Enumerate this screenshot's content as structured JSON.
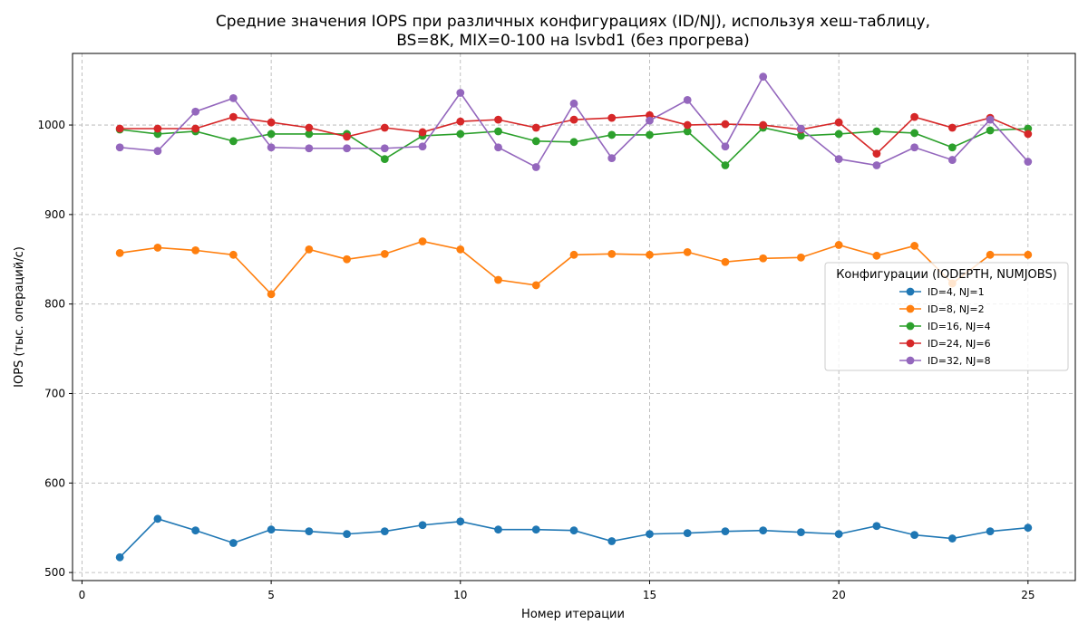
{
  "chart_data": {
    "type": "line",
    "title_line1": "Средние значения IOPS при различных конфигурациях (ID/NJ), используя хеш-таблицу,",
    "title_line2": "BS=8K, MIX=0-100 на lsvbd1 (без прогрева)",
    "xlabel": "Номер итерации",
    "ylabel": "IOPS (тыс. операций/с)",
    "xlim": [
      -0.25,
      26.25
    ],
    "ylim": [
      491,
      1080
    ],
    "x_ticks": [
      0,
      5,
      10,
      15,
      20,
      25
    ],
    "y_ticks": [
      500,
      600,
      700,
      800,
      900,
      1000
    ],
    "grid": true,
    "legend_title": "Конфигурации (IODEPTH, NUMJOBS)",
    "legend_position": "center-right",
    "x": [
      1,
      2,
      3,
      4,
      5,
      6,
      7,
      8,
      9,
      10,
      11,
      12,
      13,
      14,
      15,
      16,
      17,
      18,
      19,
      20,
      21,
      22,
      23,
      24,
      25
    ],
    "series": [
      {
        "name": "ID=4, NJ=1",
        "color": "#1f77b4",
        "values": [
          517,
          560,
          547,
          533,
          548,
          546,
          543,
          546,
          553,
          557,
          548,
          548,
          547,
          535,
          543,
          544,
          546,
          547,
          545,
          543,
          552,
          542,
          538,
          546,
          550
        ]
      },
      {
        "name": "ID=8, NJ=2",
        "color": "#ff7f0e",
        "values": [
          857,
          863,
          860,
          855,
          811,
          861,
          850,
          856,
          870,
          861,
          827,
          821,
          855,
          856,
          855,
          858,
          847,
          851,
          852,
          866,
          854,
          865,
          823,
          855,
          855
        ]
      },
      {
        "name": "ID=16, NJ=4",
        "color": "#2ca02c",
        "values": [
          995,
          990,
          993,
          982,
          990,
          990,
          990,
          962,
          988,
          990,
          993,
          982,
          981,
          989,
          989,
          993,
          955,
          997,
          988,
          990,
          993,
          991,
          975,
          994,
          996
        ]
      },
      {
        "name": "ID=24, NJ=6",
        "color": "#d62728",
        "values": [
          996,
          996,
          996,
          1009,
          1003,
          997,
          987,
          997,
          992,
          1004,
          1006,
          997,
          1006,
          1008,
          1011,
          1000,
          1001,
          1000,
          995,
          1003,
          968,
          1009,
          997,
          1008,
          990
        ]
      },
      {
        "name": "ID=32, NJ=8",
        "color": "#9467bd",
        "values": [
          975,
          971,
          1015,
          1030,
          975,
          974,
          974,
          974,
          976,
          1036,
          975,
          953,
          1024,
          963,
          1005,
          1028,
          976,
          1054,
          996,
          962,
          955,
          975,
          961,
          1006,
          959
        ]
      }
    ]
  }
}
